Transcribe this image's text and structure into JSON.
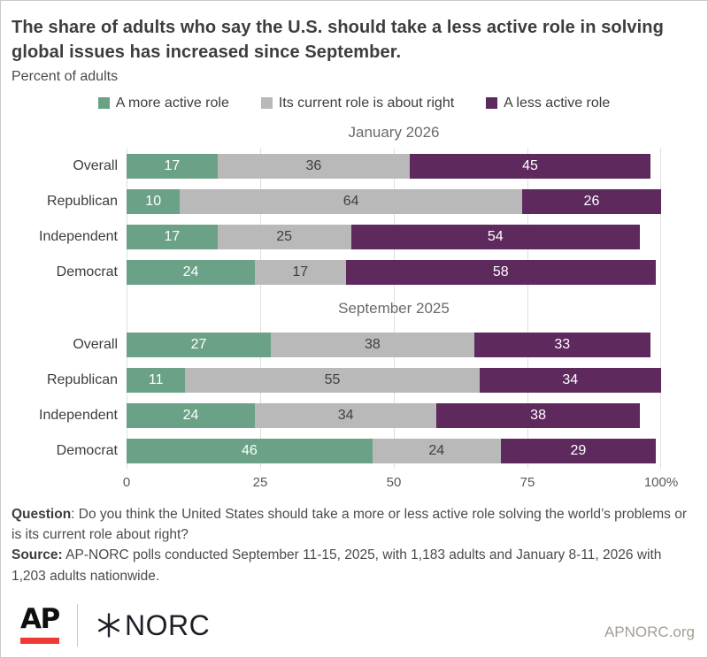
{
  "header": {
    "title": "The share of adults who say the U.S. should take a less active role in solving global issues has increased since September.",
    "subtitle": "Percent of adults"
  },
  "legend": [
    {
      "label": "A more active role",
      "color": "#6BA287"
    },
    {
      "label": "Its current role is about right",
      "color": "#B9B9B9"
    },
    {
      "label": "A less active role",
      "color": "#5E2A5E"
    }
  ],
  "chart_data": {
    "type": "bar",
    "stacked": true,
    "orientation": "horizontal",
    "title": "The share of adults who say the U.S. should take a less active role in solving global issues has increased since September.",
    "xlabel": "Percent of adults",
    "xlim": [
      0,
      100
    ],
    "grid": true,
    "series_names": [
      "A more active role",
      "Its current role is about right",
      "A less active role"
    ],
    "series_colors": [
      "#6BA287",
      "#B9B9B9",
      "#5E2A5E"
    ],
    "value_label_colors": [
      "#FFFFFF",
      "#404040",
      "#FFFFFF"
    ],
    "gridline_values": [
      0,
      25,
      50,
      75,
      100
    ],
    "x_ticks": [
      {
        "value": 0,
        "label": "0"
      },
      {
        "value": 25,
        "label": "25"
      },
      {
        "value": 50,
        "label": "50"
      },
      {
        "value": 75,
        "label": "75"
      },
      {
        "value": 100,
        "label": "100%"
      }
    ],
    "groups": [
      {
        "title": "January 2026",
        "categories": [
          "Overall",
          "Republican",
          "Independent",
          "Democrat"
        ],
        "rows": [
          [
            17,
            36,
            45
          ],
          [
            10,
            64,
            26
          ],
          [
            17,
            25,
            54
          ],
          [
            24,
            17,
            58
          ]
        ]
      },
      {
        "title": "September 2025",
        "categories": [
          "Overall",
          "Republican",
          "Independent",
          "Democrat"
        ],
        "rows": [
          [
            27,
            38,
            33
          ],
          [
            11,
            55,
            34
          ],
          [
            24,
            34,
            38
          ],
          [
            46,
            24,
            29
          ]
        ]
      }
    ]
  },
  "notes": {
    "question_label": "Question",
    "question_text": ": Do you think the United States should take a more or less active role solving the world’s problems or is its current role about right?",
    "source_label": "Source:",
    "source_text": " AP-NORC polls conducted September 11-15, 2025, with 1,183 adults and January 8-11, 2026 with 1,203 adults nationwide."
  },
  "footer": {
    "ap_text": "AP",
    "norc_text": "NORC",
    "site": "APNORC.org",
    "accent_red": "#EE3A33"
  }
}
